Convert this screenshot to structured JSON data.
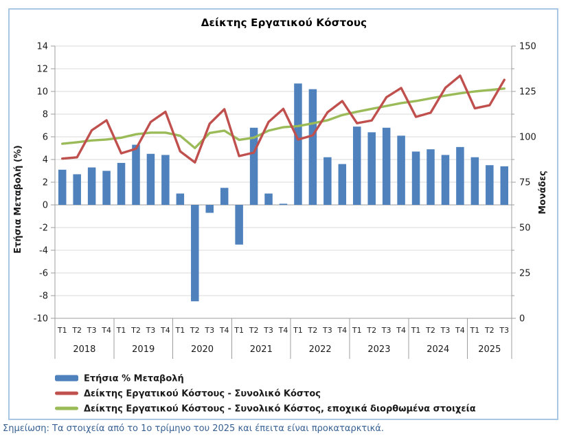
{
  "title": "Δείκτης Εργατικού Κόστους",
  "note": "Σημείωση: Τα στοιχεία από το 1ο τρίμηνο του 2025 και έπειτα είναι προκαταρκτικά.",
  "colors": {
    "bar": "#4F81BD",
    "line_total": "#C0504D",
    "line_seasonal": "#9BBB59",
    "grid": "#D9D9D9",
    "axis": "#9C9C9C",
    "border": "#A8C7E5",
    "note_text": "#376092",
    "text": "#1a1a1a"
  },
  "chart_data": {
    "type": "bar+line",
    "title": "Δείκτης Εργατικού Κόστους",
    "grid": true,
    "legend_position": "bottom-left",
    "quarter_labels": [
      "T1",
      "T2",
      "T3",
      "T4",
      "T1",
      "T2",
      "T3",
      "T4",
      "T1",
      "T2",
      "T3",
      "T4",
      "T1",
      "T2",
      "T3",
      "T4",
      "T1",
      "T2",
      "T3",
      "T4",
      "T1",
      "T2",
      "T3",
      "T4",
      "T1",
      "T2",
      "T3",
      "T4",
      "T1",
      "T2",
      "T3"
    ],
    "years": [
      {
        "label": "2018",
        "quarters": 4
      },
      {
        "label": "2019",
        "quarters": 4
      },
      {
        "label": "2020",
        "quarters": 4
      },
      {
        "label": "2021",
        "quarters": 4
      },
      {
        "label": "2022",
        "quarters": 4
      },
      {
        "label": "2023",
        "quarters": 4
      },
      {
        "label": "2024",
        "quarters": 4
      },
      {
        "label": "2025",
        "quarters": 3
      }
    ],
    "left_axis": {
      "label": "Ετήσια Μεταβολή (%)",
      "min": -10,
      "max": 14,
      "tick_step": 2
    },
    "right_axis": {
      "label": "Μονάδες",
      "min": 0,
      "max": 150,
      "tick_step": 25,
      "minor_tick_step": 12.5
    },
    "series": [
      {
        "name": "Ετήσια % Μεταβολή",
        "type": "bar",
        "axis": "left",
        "values": [
          3.1,
          2.7,
          3.3,
          3.0,
          3.7,
          5.3,
          4.5,
          4.4,
          1.0,
          -8.5,
          -0.7,
          1.5,
          -3.5,
          6.8,
          1.0,
          0.1,
          10.7,
          10.2,
          4.2,
          3.6,
          6.9,
          6.4,
          6.8,
          6.1,
          4.7,
          4.9,
          4.4,
          5.1,
          4.2,
          3.5,
          3.4
        ]
      },
      {
        "name": "Δείκτης Εργατικού Κόστους - Συνολικό Κόστος",
        "type": "line",
        "axis": "right",
        "values": [
          88.0,
          88.7,
          103.6,
          109.1,
          90.9,
          93.4,
          108.2,
          113.8,
          92.0,
          85.9,
          107.2,
          115.2,
          89.4,
          91.3,
          108.2,
          115.4,
          98.5,
          100.8,
          113.5,
          119.7,
          107.5,
          109.0,
          121.8,
          126.9,
          111.0,
          113.3,
          127.0,
          133.7,
          115.7,
          117.4,
          131.4
        ]
      },
      {
        "name": "Δείκτης Εργατικού Κόστους - Συνολικό Κόστος, εποχικά διορθωμένα στοιχεία",
        "type": "line",
        "axis": "right",
        "values": [
          96.2,
          97.0,
          98.0,
          98.5,
          99.5,
          101.4,
          102.3,
          102.3,
          100.6,
          93.8,
          102.1,
          103.4,
          98.3,
          99.5,
          103.4,
          105.3,
          105.9,
          107.4,
          109.1,
          112.0,
          113.8,
          115.4,
          117.0,
          118.6,
          119.7,
          121.2,
          122.7,
          124.0,
          125.0,
          125.8,
          126.6
        ]
      }
    ]
  }
}
